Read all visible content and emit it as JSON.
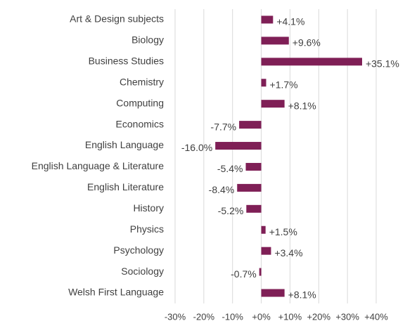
{
  "chart_data": {
    "type": "barh",
    "categories": [
      "Art & Design subjects",
      "Biology",
      "Business Studies",
      "Chemistry",
      "Computing",
      "Economics",
      "English Language",
      "English Language & Literature",
      "English Literature",
      "History",
      "Physics",
      "Psychology",
      "Sociology",
      "Welsh First Language"
    ],
    "values": [
      4.1,
      9.6,
      35.1,
      1.7,
      8.1,
      -7.7,
      -16.0,
      -5.4,
      -8.4,
      -5.2,
      1.5,
      3.4,
      -0.7,
      8.1
    ],
    "value_labels": [
      "+4.1%",
      "+9.6%",
      "+35.1%",
      "+1.7%",
      "+8.1%",
      "-7.7%",
      "-16.0%",
      "-5.4%",
      "-8.4%",
      "-5.2%",
      "+1.5%",
      "+3.4%",
      "-0.7%",
      "+8.1%"
    ],
    "color": "#7f1f56",
    "xlim": [
      -30,
      40
    ],
    "xticks": [
      {
        "value": -30,
        "label": "-30%"
      },
      {
        "value": -20,
        "label": "-20%"
      },
      {
        "value": -10,
        "label": "-10%"
      },
      {
        "value": 0,
        "label": "+0%"
      },
      {
        "value": 10,
        "label": "+10%"
      },
      {
        "value": 20,
        "label": "+20%"
      },
      {
        "value": 30,
        "label": "+30%"
      },
      {
        "value": 40,
        "label": "+40%"
      }
    ],
    "grid": true
  }
}
